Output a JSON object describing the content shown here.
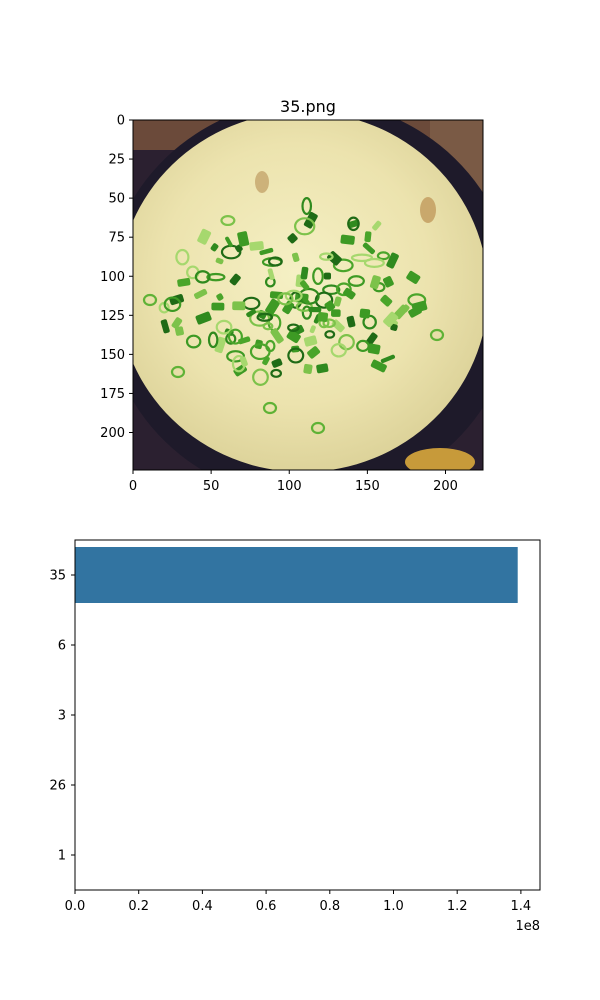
{
  "chart_data": [
    {
      "type": "image",
      "title": "35.png",
      "image_description": "steamed egg custard topped with chopped green onions",
      "x_ticks": [
        "0",
        "50",
        "100",
        "150",
        "200"
      ],
      "y_ticks": [
        "0",
        "25",
        "50",
        "75",
        "100",
        "125",
        "150",
        "175",
        "200"
      ],
      "x_extent": [
        0,
        224
      ],
      "y_extent": [
        224,
        0
      ]
    },
    {
      "type": "bar",
      "orientation": "horizontal",
      "categories": [
        "35",
        "6",
        "3",
        "26",
        "1"
      ],
      "values": [
        139000000,
        0,
        0,
        0,
        0
      ],
      "xlim": [
        0,
        146000000
      ],
      "x_ticks": [
        0,
        20000000,
        40000000,
        60000000,
        80000000,
        100000000,
        120000000,
        140000000
      ],
      "x_tick_labels": [
        "0.0",
        "0.2",
        "0.4",
        "0.6",
        "0.8",
        "1.0",
        "1.2",
        "1.4"
      ],
      "offset_text": "1e8",
      "bar_color": "#3274a1"
    }
  ]
}
